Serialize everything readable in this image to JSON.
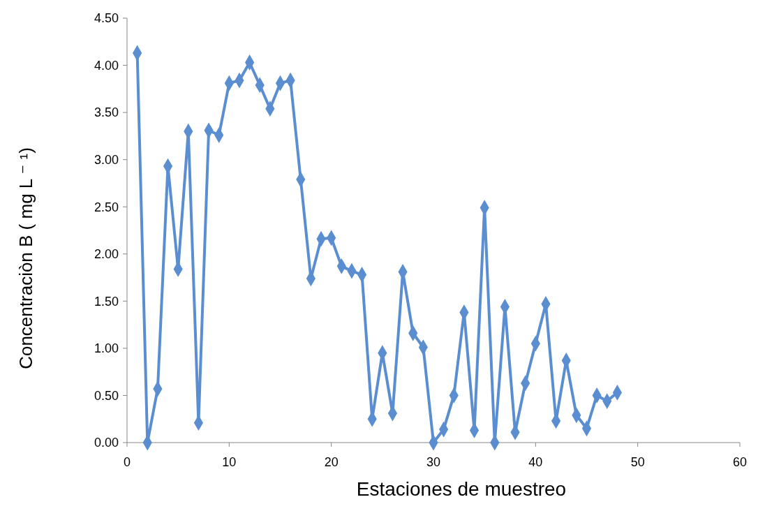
{
  "chart_data": {
    "type": "line",
    "xlabel": "Estaciones  de  muestreo",
    "ylabel": "Concentraciòn B   ( mg  L ⁻ ¹)",
    "x": [
      1,
      2,
      3,
      4,
      5,
      6,
      7,
      8,
      9,
      10,
      11,
      12,
      13,
      14,
      15,
      16,
      17,
      18,
      19,
      20,
      21,
      22,
      23,
      24,
      25,
      26,
      27,
      28,
      29,
      30,
      31,
      32,
      33,
      34,
      35,
      36,
      37,
      38,
      39,
      40,
      41,
      42,
      43,
      44,
      45,
      46,
      47,
      48
    ],
    "series": [
      {
        "color": "#5b8ed0",
        "values": [
          4.13,
          0.0,
          0.57,
          2.93,
          1.84,
          3.3,
          0.21,
          3.31,
          3.26,
          3.81,
          3.84,
          4.03,
          3.79,
          3.54,
          3.81,
          3.84,
          2.79,
          1.74,
          2.16,
          2.17,
          1.87,
          1.82,
          1.78,
          0.25,
          0.95,
          0.31,
          1.81,
          1.16,
          1.01,
          0.0,
          0.14,
          0.5,
          1.38,
          0.13,
          2.49,
          0.0,
          1.44,
          0.11,
          0.63,
          1.05,
          1.47,
          0.23,
          0.87,
          0.29,
          0.15,
          0.5,
          0.44,
          0.53
        ]
      }
    ],
    "xlim": [
      0,
      60
    ],
    "xticks": [
      0,
      10,
      20,
      30,
      40,
      50,
      60
    ],
    "ylim": [
      0,
      4.5
    ],
    "yticks": [
      {
        "value": 0,
        "label": "0.00"
      },
      {
        "value": 0.5,
        "label": "0.50"
      },
      {
        "value": 1,
        "label": "1.00"
      },
      {
        "value": 1.5,
        "label": "1.50"
      },
      {
        "value": 2,
        "label": "2.00"
      },
      {
        "value": 2.5,
        "label": "2.50"
      },
      {
        "value": 3,
        "label": "3.00"
      },
      {
        "value": 3.5,
        "label": "3.50"
      },
      {
        "value": 4,
        "label": "4.00"
      },
      {
        "value": 4.5,
        "label": "4.50"
      }
    ],
    "marker": "diamond",
    "line_style": "solid"
  }
}
